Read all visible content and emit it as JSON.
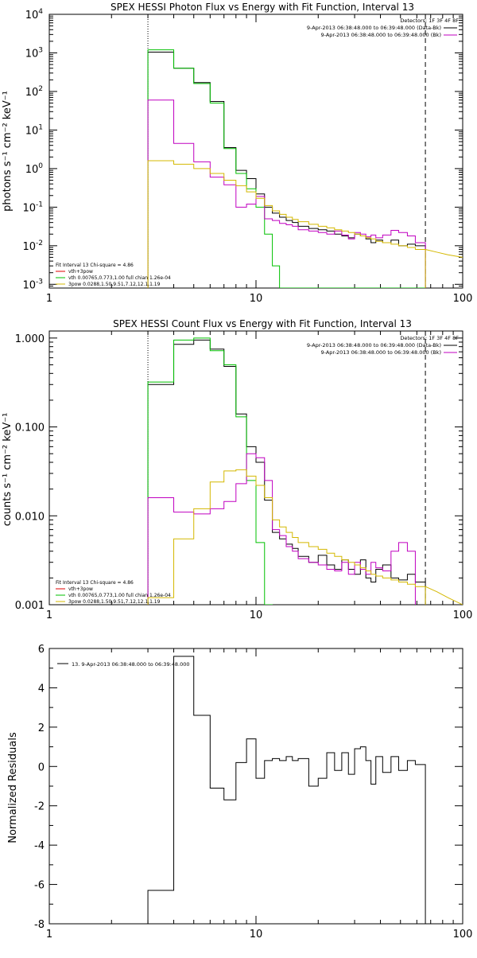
{
  "chart_data": [
    {
      "type": "line",
      "title": "SPEX HESSI Photon Flux vs Energy with Fit Function, Interval 13",
      "xlabel": "",
      "ylabel": "photons s⁻¹ cm⁻² keV⁻¹",
      "xscale": "log",
      "yscale": "log",
      "xlim": [
        1,
        100
      ],
      "ylim": [
        0.0008,
        10000
      ],
      "xticks": [
        {
          "v": 1,
          "label": "1"
        },
        {
          "v": 10,
          "label": "10"
        },
        {
          "v": 100,
          "label": "100"
        }
      ],
      "yticks": [
        {
          "v": 0.001,
          "base": "10",
          "exp": "-3"
        },
        {
          "v": 0.01,
          "base": "10",
          "exp": "-2"
        },
        {
          "v": 0.1,
          "base": "10",
          "exp": "-1"
        },
        {
          "v": 1,
          "base": "10",
          "exp": "0"
        },
        {
          "v": 10,
          "base": "10",
          "exp": "1"
        },
        {
          "v": 100,
          "base": "10",
          "exp": "2"
        },
        {
          "v": 1000,
          "base": "10",
          "exp": "3"
        },
        {
          "v": 10000,
          "base": "10",
          "exp": "4"
        }
      ],
      "header": {
        "detectors": "Detectors: 1F 3F 4F 8F",
        "line1": "9-Apr-2013 06:38:48.000 to 06:39:48.000 (Data-Bk)",
        "line2": "9-Apr-2013 06:38:48.000 to 06:39:48.000 (Bk)"
      },
      "fit_text": {
        "line1": "Fit Interval 13   Chi-square = 4.86",
        "line2": "vth+3pow",
        "line3": "vth 0.00765,0.773,1.00   full chian 1.26e-04",
        "line4": "3pow 0.0288,1.50,9.51,7.12,12.1,1.19"
      },
      "vlines": [
        {
          "x": 3.0,
          "style": "dotted"
        },
        {
          "x": 66.0,
          "style": "dashed"
        }
      ],
      "bin_edges": [
        3.0,
        4.0,
        5.0,
        6.0,
        7.0,
        8.0,
        9.0,
        10.0,
        11.0,
        12.0,
        13.0,
        14.0,
        15.0,
        16.0,
        18.0,
        20.0,
        22.0,
        24.0,
        26.0,
        28.0,
        30.0,
        32.0,
        34.0,
        36.0,
        38.0,
        41.0,
        45.0,
        49.0,
        54.0,
        59.0,
        66.0
      ],
      "series": [
        {
          "color": "#000000",
          "step": true,
          "values": [
            1050,
            400,
            170,
            55,
            3.5,
            0.9,
            0.55,
            0.22,
            0.1,
            0.07,
            0.055,
            0.045,
            0.04,
            0.032,
            0.028,
            0.026,
            0.024,
            0.02,
            0.018,
            0.016,
            0.02,
            0.018,
            0.015,
            0.012,
            0.014,
            0.012,
            0.014,
            0.01,
            0.011,
            0.01
          ]
        },
        {
          "color": "#00c000",
          "step": true,
          "values": [
            1200,
            400,
            160,
            50,
            3.3,
            0.75,
            0.3,
            0.1,
            0.02,
            0.003,
            0.0008,
            0.0008,
            0.0008,
            0.0008,
            0.0008,
            0.0008,
            0.0008,
            0.0008,
            0.0008,
            0.0008,
            0.0008,
            0.0008,
            0.0008,
            0.0008,
            0.0008,
            0.0008,
            0.0008,
            0.0008,
            0.0008,
            0.0008
          ]
        },
        {
          "color": "#c000c0",
          "step": true,
          "values": [
            60,
            4.5,
            1.5,
            0.6,
            0.38,
            0.1,
            0.12,
            0.19,
            0.05,
            0.045,
            0.038,
            0.035,
            0.032,
            0.026,
            0.024,
            0.022,
            0.02,
            0.024,
            0.019,
            0.015,
            0.022,
            0.02,
            0.017,
            0.019,
            0.016,
            0.019,
            0.025,
            0.022,
            0.018,
            0.012
          ]
        },
        {
          "color": "#d4b800",
          "step": true,
          "values": [
            1.6,
            1.3,
            1.0,
            0.75,
            0.5,
            0.36,
            0.25,
            0.17,
            0.11,
            0.08,
            0.065,
            0.055,
            0.048,
            0.042,
            0.036,
            0.032,
            0.029,
            0.026,
            0.024,
            0.022,
            0.02,
            0.018,
            0.016,
            0.015,
            0.013,
            0.012,
            0.011,
            0.01,
            0.009,
            0.008
          ]
        },
        {
          "color": "#d4b800",
          "step": false,
          "points": [
            [
              66,
              0.008
            ],
            [
              75,
              0.0068
            ],
            [
              85,
              0.0058
            ],
            [
              100,
              0.005
            ]
          ]
        }
      ]
    },
    {
      "type": "line",
      "title": "SPEX HESSI Count Flux vs Energy with Fit Function, Interval 13",
      "xlabel": "",
      "ylabel": "counts s⁻¹ cm⁻² keV⁻¹",
      "xscale": "log",
      "yscale": "log",
      "xlim": [
        1,
        100
      ],
      "ylim": [
        0.001,
        1.2
      ],
      "xticks": [
        {
          "v": 1,
          "label": "1"
        },
        {
          "v": 10,
          "label": "10"
        },
        {
          "v": 100,
          "label": "100"
        }
      ],
      "yticks": [
        {
          "v": 0.001,
          "label": "0.001"
        },
        {
          "v": 0.01,
          "label": "0.010"
        },
        {
          "v": 0.1,
          "label": "0.100"
        },
        {
          "v": 1,
          "label": "1.000"
        }
      ],
      "header": {
        "detectors": "Detectors: 1F 3F 4F 8F",
        "line1": "9-Apr-2013 06:38:48.000 to 06:39:48.000 (Data-Bk)",
        "line2": "9-Apr-2013 06:38:48.000 to 06:39:48.000 (Bk)"
      },
      "fit_text": {
        "line1": "Fit Interval 13   Chi-square = 4.86",
        "line2": "vth+3pow",
        "line3": "vth 0.00765,0.773,1.00   full chian 1.26e-04",
        "line4": "3pow 0.0288,1.50,9.51,7.12,12.1,1.19"
      },
      "vlines": [
        {
          "x": 3.0,
          "style": "dotted"
        },
        {
          "x": 66.0,
          "style": "dashed"
        }
      ],
      "bin_edges": [
        3.0,
        4.0,
        5.0,
        6.0,
        7.0,
        8.0,
        9.0,
        10.0,
        11.0,
        12.0,
        13.0,
        14.0,
        15.0,
        16.0,
        18.0,
        20.0,
        22.0,
        24.0,
        26.0,
        28.0,
        30.0,
        32.0,
        34.0,
        36.0,
        38.0,
        41.0,
        45.0,
        49.0,
        54.0,
        59.0,
        66.0
      ],
      "series": [
        {
          "color": "#000000",
          "step": true,
          "values": [
            0.3,
            0.85,
            0.95,
            0.75,
            0.48,
            0.14,
            0.06,
            0.04,
            0.015,
            0.0065,
            0.0055,
            0.0048,
            0.0043,
            0.0035,
            0.003,
            0.0036,
            0.0028,
            0.0025,
            0.0032,
            0.0025,
            0.0022,
            0.0032,
            0.002,
            0.0018,
            0.0025,
            0.0028,
            0.002,
            0.0019,
            0.0022,
            0.0018
          ]
        },
        {
          "color": "#00c000",
          "step": true,
          "values": [
            0.32,
            0.95,
            1.0,
            0.72,
            0.5,
            0.13,
            0.025,
            0.005,
            0.001,
            0.0008,
            0.0008,
            0.0008,
            0.0008,
            0.0008,
            0.0008,
            0.0008,
            0.0008,
            0.0008,
            0.0008,
            0.0008,
            0.0008,
            0.0008,
            0.0008,
            0.0008,
            0.0008,
            0.0008,
            0.0008,
            0.0008,
            0.0008,
            0.0008
          ]
        },
        {
          "color": "#c000c0",
          "step": true,
          "values": [
            0.016,
            0.011,
            0.0105,
            0.012,
            0.0145,
            0.023,
            0.05,
            0.045,
            0.025,
            0.007,
            0.006,
            0.0045,
            0.004,
            0.0033,
            0.003,
            0.0028,
            0.0025,
            0.0024,
            0.003,
            0.0022,
            0.003,
            0.0025,
            0.0022,
            0.003,
            0.0026,
            0.0024,
            0.004,
            0.005,
            0.004,
            0.0008
          ]
        },
        {
          "color": "#d4b800",
          "step": true,
          "values": [
            0.0012,
            0.0055,
            0.012,
            0.024,
            0.032,
            0.033,
            0.028,
            0.022,
            0.016,
            0.009,
            0.0075,
            0.0065,
            0.0057,
            0.005,
            0.0045,
            0.0042,
            0.0038,
            0.0035,
            0.0032,
            0.003,
            0.0028,
            0.0026,
            0.0024,
            0.0022,
            0.0021,
            0.002,
            0.0019,
            0.0018,
            0.0017,
            0.0016
          ]
        },
        {
          "color": "#d4b800",
          "step": false,
          "points": [
            [
              66,
              0.0016
            ],
            [
              75,
              0.0014
            ],
            [
              85,
              0.0012
            ],
            [
              100,
              0.001
            ]
          ]
        }
      ]
    },
    {
      "type": "line",
      "title": "",
      "xlabel": "",
      "ylabel": "Normalized Residuals",
      "xscale": "log",
      "yscale": "linear",
      "xlim": [
        1,
        100
      ],
      "ylim": [
        -8,
        6
      ],
      "xticks": [
        {
          "v": 1,
          "label": "1"
        },
        {
          "v": 10,
          "label": "10"
        },
        {
          "v": 100,
          "label": "100"
        }
      ],
      "yticks": [
        {
          "v": -8,
          "label": "-8"
        },
        {
          "v": -6,
          "label": "-6"
        },
        {
          "v": -4,
          "label": "-4"
        },
        {
          "v": -2,
          "label": "-2"
        },
        {
          "v": 0,
          "label": "0"
        },
        {
          "v": 2,
          "label": "2"
        },
        {
          "v": 4,
          "label": "4"
        },
        {
          "v": 6,
          "label": "6"
        }
      ],
      "legend": {
        "label": "13.  9-Apr-2013 06:38:48.000 to 06:39:48.000"
      },
      "bin_edges": [
        3.0,
        4.0,
        5.0,
        6.0,
        7.0,
        8.0,
        9.0,
        10.0,
        11.0,
        12.0,
        13.0,
        14.0,
        15.0,
        16.0,
        18.0,
        20.0,
        22.0,
        24.0,
        26.0,
        28.0,
        30.0,
        32.0,
        34.0,
        36.0,
        38.0,
        41.0,
        45.0,
        49.0,
        54.0,
        59.0,
        66.0
      ],
      "series": [
        {
          "color": "#000000",
          "step": true,
          "values": [
            -6.3,
            5.6,
            2.6,
            -1.1,
            -1.7,
            0.2,
            1.4,
            -0.6,
            0.3,
            0.4,
            0.3,
            0.5,
            0.3,
            0.4,
            -1.0,
            -0.6,
            0.7,
            -0.2,
            0.7,
            -0.4,
            0.9,
            1.0,
            0.3,
            -0.9,
            0.5,
            -0.3,
            0.5,
            -0.2,
            0.3,
            0.1
          ]
        }
      ]
    }
  ]
}
